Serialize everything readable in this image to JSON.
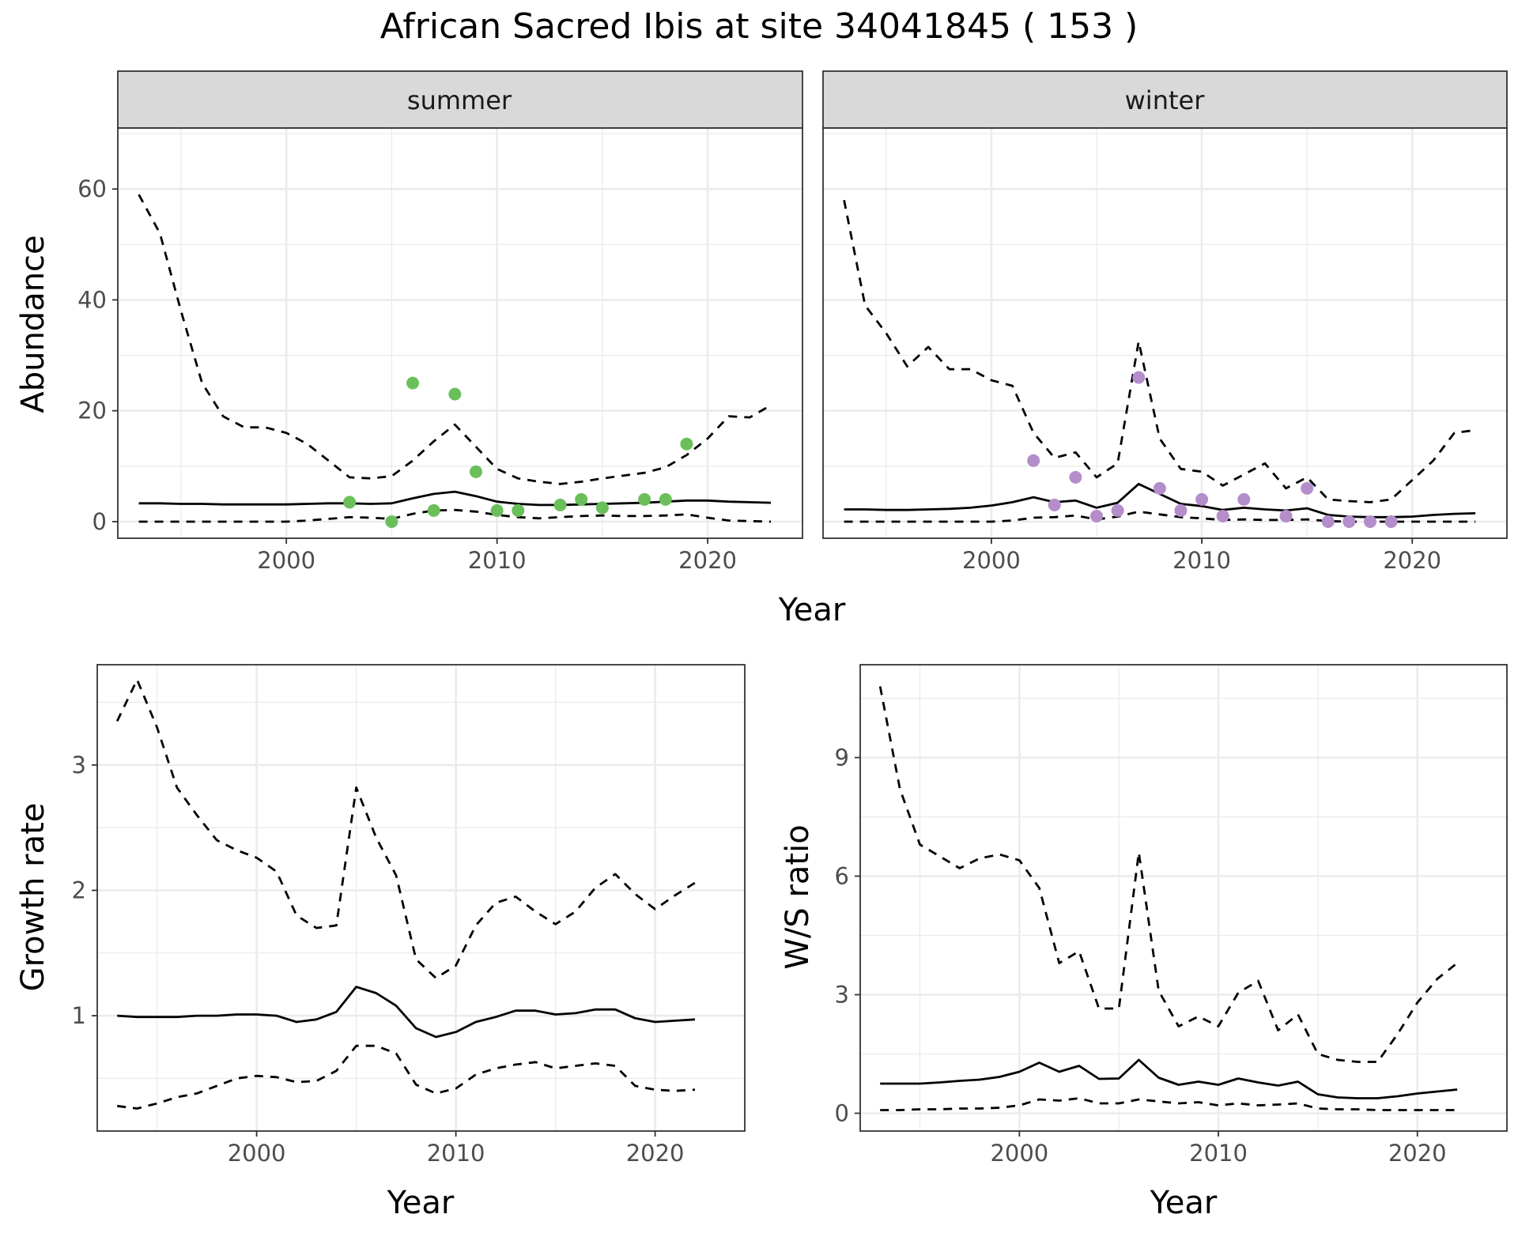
{
  "title": "African Sacred Ibis at site 34041845 ( 153 )",
  "colors": {
    "summer_points": "#6abf5b",
    "winter_points": "#b48ecb",
    "line": "#000000"
  },
  "chart_data": [
    {
      "id": "abundance",
      "type": "line",
      "facets": [
        "summer",
        "winter"
      ],
      "xlabel": "Year",
      "ylabel": "Abundance",
      "xlim": [
        1992,
        2024.5
      ],
      "ylim": [
        -3,
        71
      ],
      "xticks": [
        2000,
        2010,
        2020
      ],
      "yticks": [
        0,
        20,
        40,
        60
      ],
      "grid": true,
      "panels": [
        {
          "facet": "summer",
          "x": [
            1993,
            1994,
            1995,
            1996,
            1997,
            1998,
            1999,
            2000,
            2001,
            2002,
            2003,
            2004,
            2005,
            2006,
            2007,
            2008,
            2009,
            2010,
            2011,
            2012,
            2013,
            2014,
            2015,
            2016,
            2017,
            2018,
            2019,
            2020,
            2021,
            2022,
            2023
          ],
          "series": [
            {
              "role": "estimate",
              "style": "solid",
              "values": [
                3.3,
                3.3,
                3.2,
                3.2,
                3.1,
                3.1,
                3.1,
                3.1,
                3.2,
                3.3,
                3.3,
                3.2,
                3.3,
                4.2,
                5.0,
                5.4,
                4.6,
                3.6,
                3.2,
                3.0,
                3.0,
                3.1,
                3.2,
                3.3,
                3.4,
                3.6,
                3.8,
                3.8,
                3.6,
                3.5,
                3.4
              ]
            },
            {
              "role": "upper",
              "style": "dashed",
              "values": [
                59,
                52,
                38,
                25,
                19,
                17,
                17,
                16,
                14,
                11,
                8,
                7.8,
                8.2,
                11,
                14.5,
                17.5,
                13.5,
                9.5,
                7.8,
                7.2,
                6.8,
                7.2,
                7.8,
                8.3,
                8.8,
                9.8,
                12,
                15,
                19,
                18.8,
                21
              ]
            },
            {
              "role": "lower",
              "style": "dashed",
              "values": [
                0,
                0,
                0,
                0,
                0,
                0,
                0,
                0,
                0.2,
                0.5,
                0.8,
                0.7,
                0.5,
                1.4,
                2.0,
                2.1,
                1.8,
                1.2,
                0.8,
                0.6,
                0.8,
                1.0,
                1.1,
                1.0,
                1.0,
                1.1,
                1.3,
                0.7,
                0.2,
                0.1,
                0
              ]
            }
          ],
          "points": {
            "x": [
              2003,
              2005,
              2006,
              2007,
              2008,
              2009,
              2010,
              2011,
              2013,
              2014,
              2015,
              2017,
              2018,
              2019
            ],
            "y": [
              3.5,
              0,
              25,
              2,
              23,
              9,
              2,
              2,
              3,
              4,
              2.5,
              4,
              4,
              14
            ]
          }
        },
        {
          "facet": "winter",
          "x": [
            1993,
            1994,
            1995,
            1996,
            1997,
            1998,
            1999,
            2000,
            2001,
            2002,
            2003,
            2004,
            2005,
            2006,
            2007,
            2008,
            2009,
            2010,
            2011,
            2012,
            2013,
            2014,
            2015,
            2016,
            2017,
            2018,
            2019,
            2020,
            2021,
            2022,
            2023
          ],
          "series": [
            {
              "role": "estimate",
              "style": "solid",
              "values": [
                2.2,
                2.2,
                2.1,
                2.1,
                2.2,
                2.3,
                2.5,
                2.9,
                3.5,
                4.4,
                3.5,
                3.8,
                2.5,
                3.4,
                6.8,
                5.0,
                3.2,
                2.8,
                2.1,
                2.5,
                2.2,
                2.0,
                2.4,
                1.2,
                0.9,
                0.8,
                0.8,
                0.9,
                1.2,
                1.4,
                1.5
              ]
            },
            {
              "role": "upper",
              "style": "dashed",
              "values": [
                58,
                39,
                34,
                28,
                31.5,
                27.5,
                27.5,
                25.5,
                24.5,
                16,
                11.5,
                12.5,
                8,
                10.5,
                32.5,
                15,
                9.5,
                9,
                6.5,
                8.5,
                10.5,
                6,
                8,
                4,
                3.7,
                3.5,
                4,
                7.5,
                11,
                16,
                16.5
              ]
            },
            {
              "role": "lower",
              "style": "dashed",
              "values": [
                0,
                0,
                0,
                0,
                0,
                0,
                0,
                0,
                0.2,
                0.7,
                0.8,
                1.1,
                0.4,
                0.9,
                1.8,
                1.3,
                0.8,
                0.6,
                0.3,
                0.4,
                0.3,
                0.3,
                0.4,
                0.1,
                0,
                0,
                0,
                0,
                0,
                0,
                0
              ]
            }
          ],
          "points": {
            "x": [
              2002,
              2003,
              2004,
              2005,
              2006,
              2007,
              2008,
              2009,
              2010,
              2011,
              2012,
              2014,
              2015,
              2016,
              2017,
              2018,
              2019
            ],
            "y": [
              11,
              3,
              8,
              1,
              2,
              26,
              6,
              2,
              4,
              1,
              4,
              1,
              6,
              0,
              0,
              0,
              0
            ]
          }
        }
      ]
    },
    {
      "id": "growth",
      "type": "line",
      "xlabel": "Year",
      "ylabel": "Growth rate",
      "xlim": [
        1992,
        2024.5
      ],
      "ylim": [
        0.08,
        3.8
      ],
      "xticks": [
        2000,
        2010,
        2020
      ],
      "yticks": [
        1,
        2,
        3
      ],
      "grid": true,
      "x": [
        1993,
        1994,
        1995,
        1996,
        1997,
        1998,
        1999,
        2000,
        2001,
        2002,
        2003,
        2004,
        2005,
        2006,
        2007,
        2008,
        2009,
        2010,
        2011,
        2012,
        2013,
        2014,
        2015,
        2016,
        2017,
        2018,
        2019,
        2020,
        2021,
        2022
      ],
      "series": [
        {
          "role": "estimate",
          "style": "solid",
          "values": [
            1.0,
            0.99,
            0.99,
            0.99,
            1.0,
            1.0,
            1.01,
            1.01,
            1.0,
            0.95,
            0.97,
            1.03,
            1.23,
            1.18,
            1.08,
            0.9,
            0.83,
            0.87,
            0.95,
            0.99,
            1.04,
            1.04,
            1.01,
            1.02,
            1.05,
            1.05,
            0.98,
            0.95,
            0.96,
            0.97
          ]
        },
        {
          "role": "upper",
          "style": "dashed",
          "values": [
            3.35,
            3.68,
            3.3,
            2.82,
            2.6,
            2.4,
            2.32,
            2.26,
            2.15,
            1.8,
            1.7,
            1.72,
            2.82,
            2.42,
            2.12,
            1.45,
            1.3,
            1.4,
            1.72,
            1.9,
            1.95,
            1.83,
            1.73,
            1.83,
            2.02,
            2.13,
            1.97,
            1.85,
            1.96,
            2.06
          ]
        },
        {
          "role": "lower",
          "style": "dashed",
          "values": [
            0.28,
            0.26,
            0.3,
            0.35,
            0.38,
            0.44,
            0.5,
            0.52,
            0.51,
            0.47,
            0.48,
            0.56,
            0.76,
            0.76,
            0.7,
            0.45,
            0.38,
            0.42,
            0.53,
            0.58,
            0.61,
            0.63,
            0.58,
            0.6,
            0.62,
            0.6,
            0.44,
            0.41,
            0.4,
            0.41
          ]
        }
      ]
    },
    {
      "id": "ratio",
      "type": "line",
      "xlabel": "Year",
      "ylabel": "W/S ratio",
      "xlim": [
        1992,
        2024.5
      ],
      "ylim": [
        -0.45,
        11.35
      ],
      "xticks": [
        2000,
        2010,
        2020
      ],
      "yticks": [
        0,
        3,
        6,
        9
      ],
      "grid": true,
      "x": [
        1993,
        1994,
        1995,
        1996,
        1997,
        1998,
        1999,
        2000,
        2001,
        2002,
        2003,
        2004,
        2005,
        2006,
        2007,
        2008,
        2009,
        2010,
        2011,
        2012,
        2013,
        2014,
        2015,
        2016,
        2017,
        2018,
        2019,
        2020,
        2021,
        2022
      ],
      "series": [
        {
          "role": "estimate",
          "style": "solid",
          "values": [
            0.75,
            0.75,
            0.75,
            0.78,
            0.82,
            0.85,
            0.92,
            1.05,
            1.28,
            1.05,
            1.2,
            0.87,
            0.88,
            1.35,
            0.9,
            0.72,
            0.8,
            0.72,
            0.88,
            0.78,
            0.7,
            0.8,
            0.48,
            0.4,
            0.38,
            0.38,
            0.43,
            0.5,
            0.55,
            0.6
          ]
        },
        {
          "role": "upper",
          "style": "dashed",
          "values": [
            10.8,
            8.2,
            6.8,
            6.5,
            6.2,
            6.45,
            6.55,
            6.4,
            5.7,
            3.8,
            4.1,
            2.65,
            2.65,
            6.6,
            3.1,
            2.2,
            2.45,
            2.2,
            3.05,
            3.35,
            2.1,
            2.5,
            1.5,
            1.35,
            1.3,
            1.3,
            2.0,
            2.8,
            3.4,
            3.8
          ]
        },
        {
          "role": "lower",
          "style": "dashed",
          "values": [
            0.08,
            0.08,
            0.1,
            0.1,
            0.12,
            0.12,
            0.14,
            0.2,
            0.35,
            0.32,
            0.38,
            0.25,
            0.25,
            0.35,
            0.3,
            0.25,
            0.28,
            0.2,
            0.25,
            0.2,
            0.22,
            0.25,
            0.12,
            0.1,
            0.1,
            0.08,
            0.08,
            0.08,
            0.08,
            0.08
          ]
        }
      ]
    }
  ]
}
